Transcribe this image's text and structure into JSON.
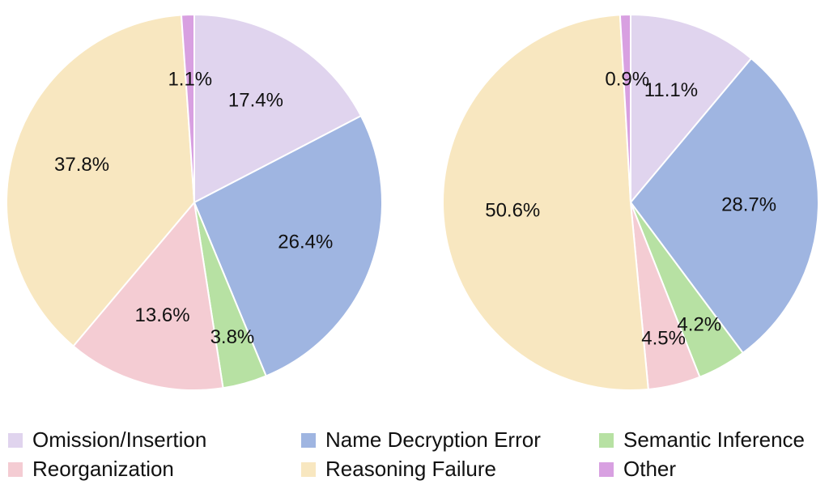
{
  "chart_data": [
    {
      "type": "pie",
      "categories": [
        "Omission/Insertion",
        "Name Decryption Error",
        "Semantic Inference",
        "Reorganization",
        "Reasoning Failure",
        "Other"
      ],
      "values": [
        17.4,
        26.4,
        3.8,
        13.6,
        37.8,
        1.1
      ],
      "value_labels": [
        "17.4%",
        "26.4%",
        "3.8%",
        "13.6%",
        "37.8%",
        "1.1%"
      ],
      "colors": [
        "#e0d4ee",
        "#9fb5e1",
        "#b7e1a3",
        "#f4ccd3",
        "#f8e7c0",
        "#d8a0e1"
      ]
    },
    {
      "type": "pie",
      "categories": [
        "Omission/Insertion",
        "Name Decryption Error",
        "Semantic Inference",
        "Reorganization",
        "Reasoning Failure",
        "Other"
      ],
      "values": [
        11.1,
        28.7,
        4.2,
        4.5,
        50.6,
        0.9
      ],
      "value_labels": [
        "11.1%",
        "28.7%",
        "4.2%",
        "4.5%",
        "50.6%",
        "0.9%"
      ],
      "colors": [
        "#e0d4ee",
        "#9fb5e1",
        "#b7e1a3",
        "#f4ccd3",
        "#f8e7c0",
        "#d8a0e1"
      ]
    }
  ]
}
